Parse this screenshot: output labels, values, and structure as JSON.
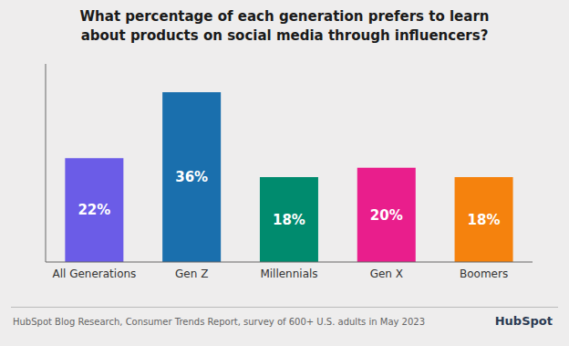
{
  "chart_data": {
    "type": "bar",
    "title": "What percentage of each generation prefers to learn\nabout products on social media through influencers?",
    "categories": [
      "All Generations",
      "Gen Z",
      "Millennials",
      "Gen X",
      "Boomers"
    ],
    "values": [
      22,
      36,
      18,
      20,
      18
    ],
    "value_labels": [
      "22%",
      "36%",
      "18%",
      "20%",
      "18%"
    ],
    "colors": [
      "#6B5CE7",
      "#1A6FAD",
      "#008B6E",
      "#E91E8C",
      "#F5820D"
    ],
    "ylim": [
      0,
      42
    ],
    "data_labels": true,
    "tick_labels": "x",
    "grid": false,
    "annotations": [
      "HubSpot Blog Research, Consumer Trends Report, survey of 600+ U.S. adults in May 2023",
      "HubSpot"
    ]
  }
}
